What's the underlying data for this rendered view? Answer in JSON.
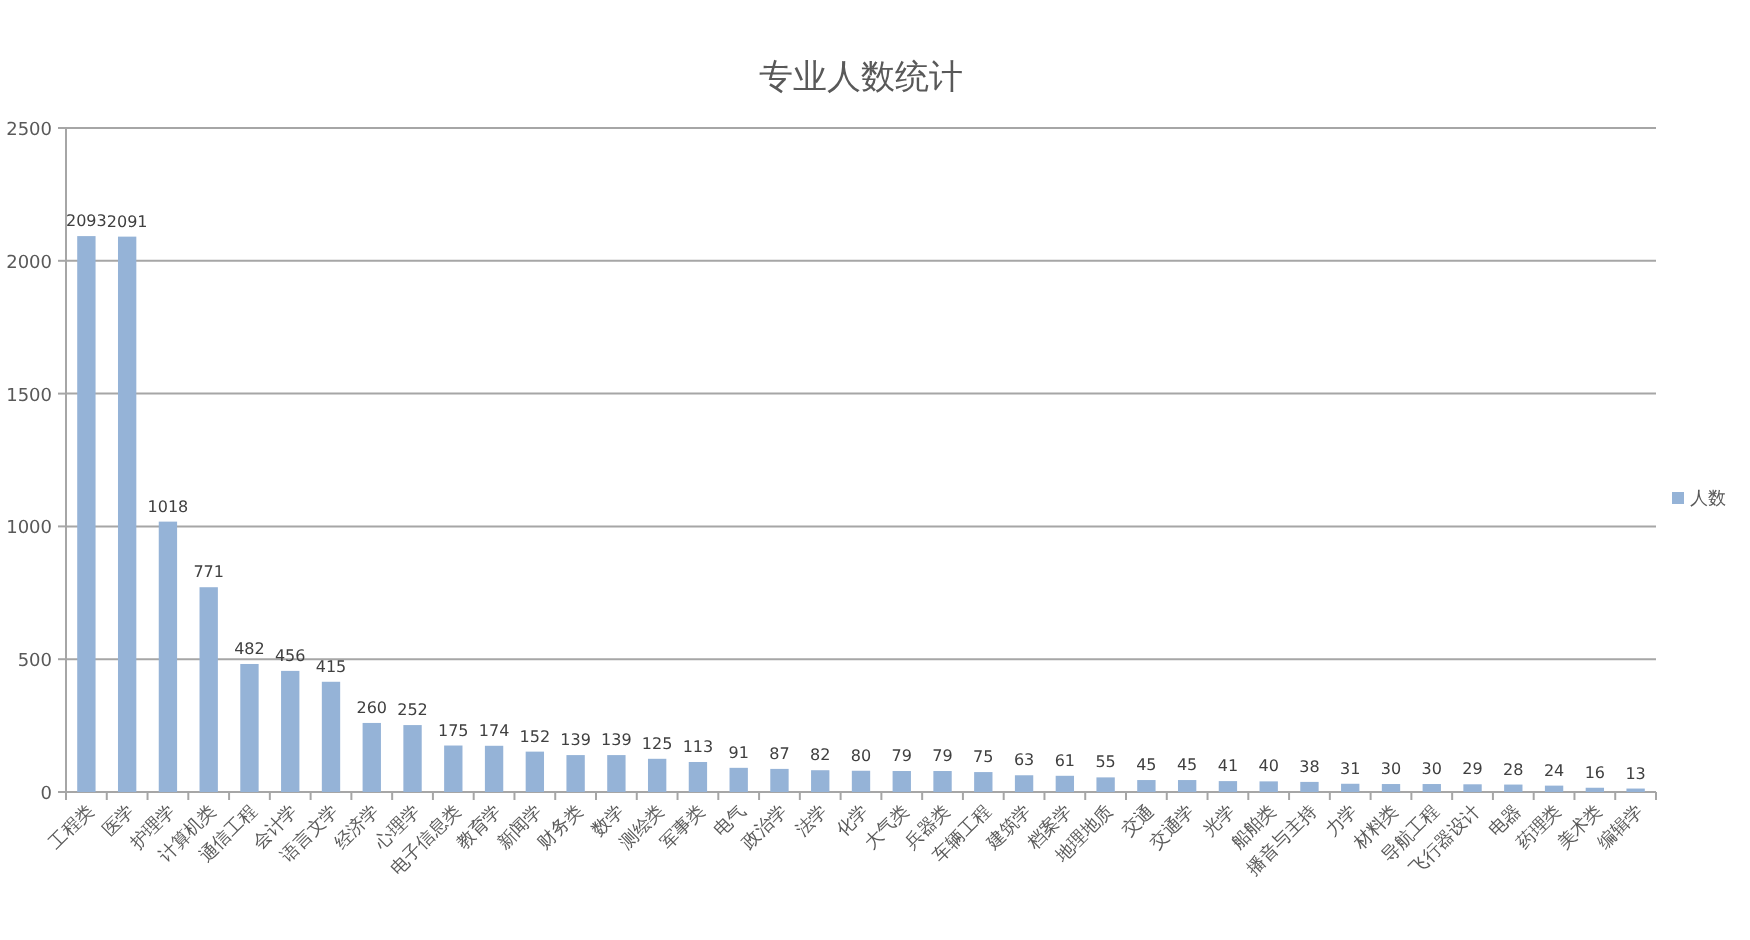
{
  "chart_data": {
    "type": "bar",
    "title": "专业人数统计",
    "categories": [
      "工程类",
      "医学",
      "护理学",
      "计算机类",
      "通信工程",
      "会计学",
      "语言文学",
      "经济学",
      "心理学",
      "电子信息类",
      "教育学",
      "新闻学",
      "财务类",
      "数学",
      "测绘类",
      "军事类",
      "电气",
      "政治学",
      "法学",
      "化学",
      "大气类",
      "兵器类",
      "车辆工程",
      "建筑学",
      "档案学",
      "地理地质",
      "交通",
      "交通学",
      "光学",
      "船舶类",
      "播音与主持",
      "力学",
      "材料类",
      "导航工程",
      "飞行器设计",
      "电器",
      "药理类",
      "美术类",
      "编辑学"
    ],
    "series": [
      {
        "name": "人数",
        "color": "#95b3d7",
        "values": [
          2093,
          2091,
          1018,
          771,
          482,
          456,
          415,
          260,
          252,
          175,
          174,
          152,
          139,
          139,
          125,
          113,
          91,
          87,
          82,
          80,
          79,
          79,
          75,
          63,
          61,
          55,
          45,
          45,
          41,
          40,
          38,
          31,
          30,
          30,
          29,
          28,
          24,
          16,
          13
        ]
      }
    ],
    "ylim": [
      0,
      2500
    ],
    "yticks": [
      0,
      500,
      1000,
      1500,
      2000,
      2500
    ],
    "grid": "y",
    "legend": "right",
    "data_labels": true
  }
}
